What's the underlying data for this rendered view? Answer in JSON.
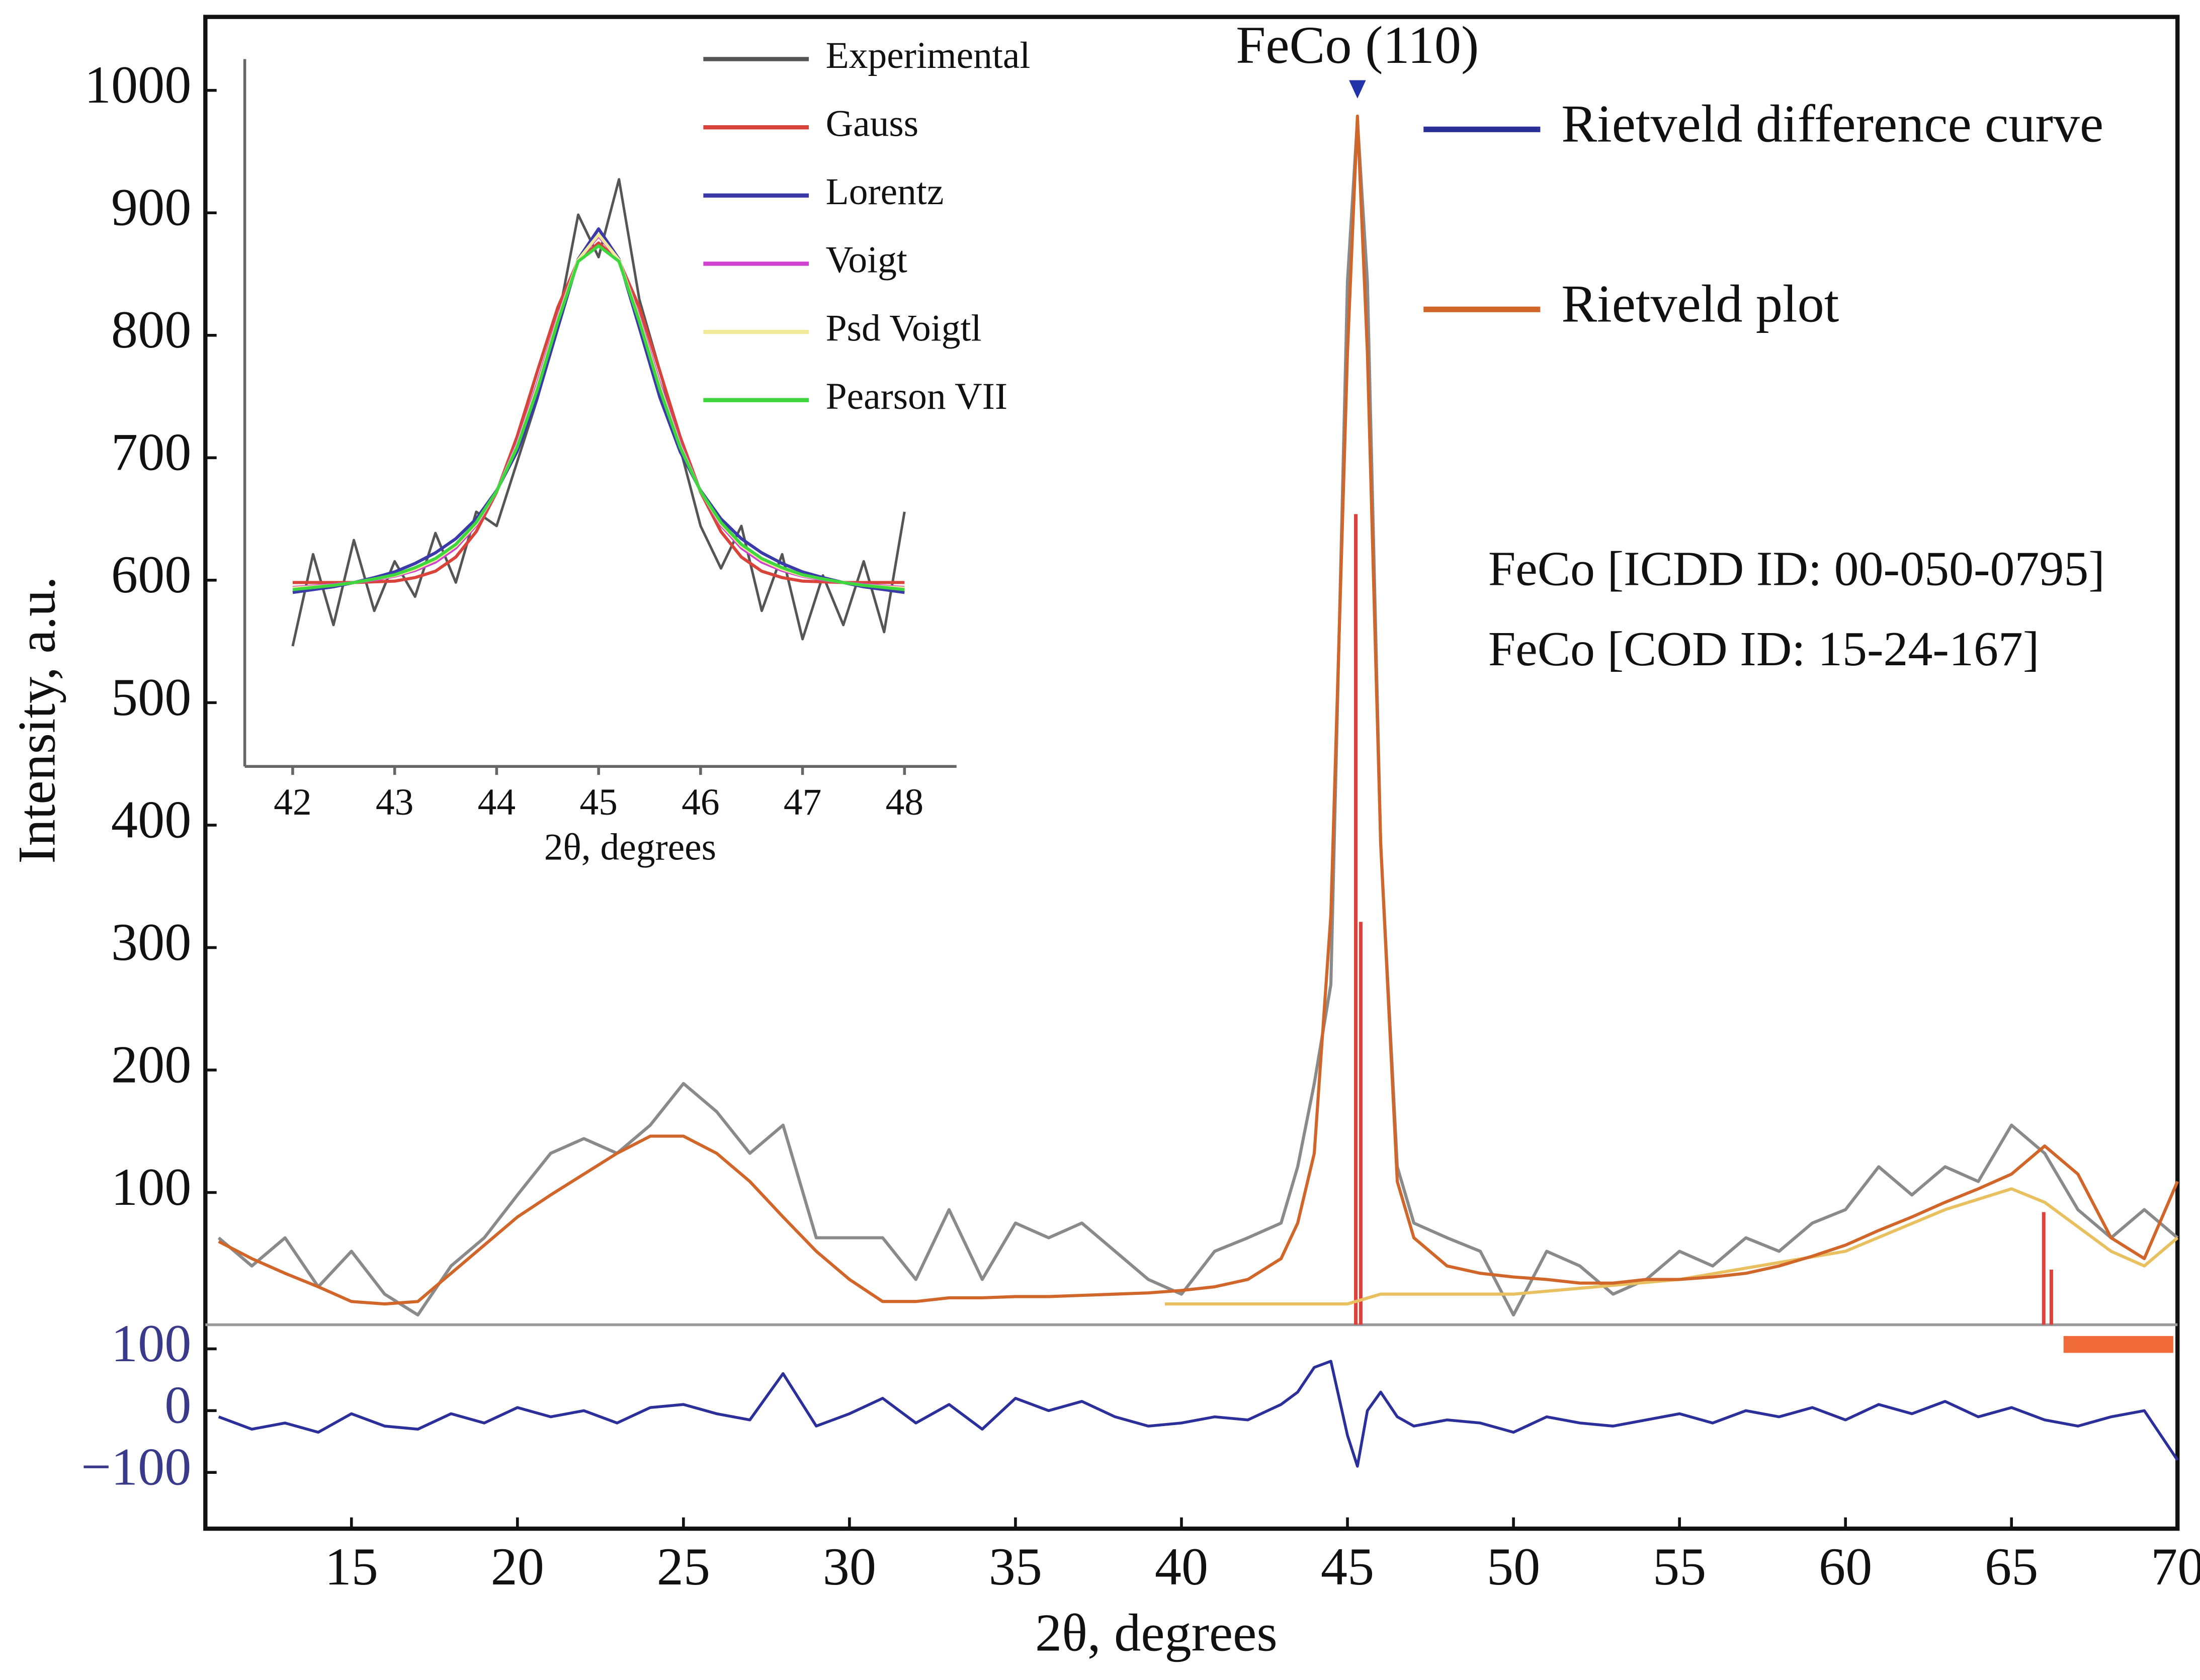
{
  "chart_data": [
    {
      "type": "line",
      "xlabel": "2θ, degrees",
      "ylabel": "Intensity, a.u.",
      "annotations": [
        {
          "text": "FeCo (110)",
          "x": 45.3
        }
      ],
      "notes": [
        "FeCo [ICDD ID: 00-050-0795]",
        "FeCo [COD ID: 15-24-167]"
      ],
      "xlim": [
        10.6,
        70
      ],
      "xticks": [
        15,
        20,
        25,
        30,
        35,
        40,
        45,
        50,
        55,
        60,
        65,
        70
      ],
      "ylim": [
        -8,
        1060
      ],
      "yticks": [
        100,
        200,
        300,
        400,
        500,
        600,
        700,
        800,
        900,
        1000
      ],
      "y2lim": [
        -191,
        139
      ],
      "y2ticks": [
        100,
        0,
        {
          "value": -100,
          "label": "−100"
        }
      ],
      "x": [
        11,
        12,
        13,
        14,
        15,
        16,
        17,
        18,
        19,
        20,
        21,
        22,
        23,
        24,
        25,
        26,
        27,
        28,
        29,
        30,
        31,
        32,
        33,
        34,
        35,
        36,
        37,
        38,
        39,
        40,
        41,
        42,
        43,
        43.5,
        44,
        44.5,
        45,
        45.3,
        45.6,
        46,
        46.5,
        47,
        48,
        49,
        50,
        51,
        52,
        53,
        54,
        55,
        56,
        57,
        58,
        59,
        60,
        61,
        62,
        63,
        64,
        65,
        66,
        67,
        68,
        69,
        70
      ],
      "series": [
        {
          "color": "#8a8a8a",
          "values": [
            63,
            40,
            63,
            23,
            52,
            17,
            0,
            40,
            63,
            98,
            132,
            144,
            132,
            155,
            189,
            166,
            132,
            155,
            63,
            63,
            63,
            29,
            86,
            29,
            75,
            63,
            75,
            52,
            29,
            17,
            52,
            63,
            75,
            121,
            189,
            270,
            844,
            976,
            844,
            385,
            121,
            75,
            63,
            52,
            0,
            52,
            40,
            17,
            29,
            52,
            40,
            63,
            52,
            75,
            86,
            121,
            98,
            121,
            109,
            155,
            132,
            86,
            63,
            86,
            63
          ]
        },
        {
          "name": "Rietveld difference curve",
          "color": "#2b2f9a",
          "axis": "y2",
          "values": [
            -10,
            -30,
            -20,
            -35,
            -5,
            -25,
            -30,
            -5,
            -20,
            5,
            -10,
            0,
            -20,
            5,
            10,
            -5,
            -15,
            60,
            -25,
            -5,
            20,
            -20,
            10,
            -30,
            20,
            0,
            15,
            -10,
            -25,
            -20,
            -10,
            -15,
            10,
            30,
            70,
            80,
            -40,
            -90,
            0,
            30,
            -10,
            -25,
            -15,
            -20,
            -35,
            -10,
            -20,
            -25,
            -15,
            -5,
            -20,
            0,
            -10,
            5,
            -15,
            10,
            -5,
            15,
            -10,
            5,
            -15,
            -25,
            -10,
            0,
            -80
          ]
        },
        {
          "name": "Rietveld plot",
          "color": "#d0662a",
          "values": [
            60,
            46,
            34,
            23,
            11,
            9,
            11,
            34,
            57,
            80,
            98,
            115,
            132,
            146,
            146,
            132,
            109,
            80,
            52,
            29,
            11,
            11,
            14,
            14,
            15,
            15,
            16,
            17,
            18,
            20,
            23,
            29,
            46,
            75,
            132,
            327,
            786,
            979,
            786,
            385,
            109,
            63,
            40,
            34,
            31,
            29,
            26,
            26,
            29,
            29,
            31,
            34,
            40,
            48,
            57,
            69,
            80,
            92,
            103,
            115,
            138,
            115,
            63,
            46,
            109
          ]
        },
        {
          "color": "#e8c060",
          "x": [
            39.5,
            45,
            46,
            50,
            55,
            60,
            63,
            65,
            66,
            68,
            69,
            70
          ],
          "values": [
            9,
            9,
            17,
            17,
            29,
            52,
            86,
            103,
            92,
            52,
            40,
            63
          ]
        }
      ],
      "sticks": {
        "color": "#e0403a",
        "x": [
          45.25,
          45.4,
          65.97,
          66.2
        ],
        "values": [
          654,
          321,
          84,
          37
        ]
      }
    },
    {
      "type": "line",
      "xlabel": "2θ, degrees",
      "xlim": [
        41.53,
        48.51
      ],
      "xticks": [
        42,
        43,
        44,
        45,
        46,
        47,
        48
      ],
      "ylim": [
        0,
        100
      ],
      "x": [
        42,
        42.2,
        42.4,
        42.6,
        42.8,
        43,
        43.2,
        43.4,
        43.6,
        43.8,
        44,
        44.2,
        44.4,
        44.6,
        44.8,
        45,
        45.2,
        45.4,
        45.6,
        45.8,
        46,
        46.2,
        46.4,
        46.6,
        46.8,
        47,
        47.2,
        47.4,
        47.6,
        47.8,
        48
      ],
      "series": [
        {
          "name": "Experimental",
          "color": "#555555",
          "values": [
            17,
            30,
            20,
            32,
            22,
            29,
            24,
            33,
            26,
            36,
            34,
            43,
            52,
            63,
            78,
            72,
            83,
            66,
            56,
            45,
            34,
            28,
            34,
            22,
            30,
            18,
            27,
            20,
            29,
            19,
            36
          ]
        },
        {
          "name": "Gauss",
          "color": "#d9443a",
          "values": [
            26,
            26,
            26,
            26,
            26.1,
            26.2,
            26.7,
            27.6,
            29.6,
            33.2,
            38.8,
            46.6,
            55.9,
            64.9,
            71.5,
            74,
            71.5,
            64.9,
            55.9,
            46.6,
            38.8,
            33.2,
            29.6,
            27.6,
            26.7,
            26.2,
            26.1,
            26,
            26,
            26,
            26
          ]
        },
        {
          "name": "Lorentz",
          "color": "#3a3aa8",
          "values": [
            24.6,
            25,
            25.4,
            26,
            26.7,
            27.5,
            28.7,
            30.2,
            32.2,
            35,
            39,
            44.5,
            52.2,
            62,
            71.7,
            76,
            71.7,
            62,
            52.2,
            44.5,
            39,
            35,
            32.2,
            30.2,
            28.7,
            27.5,
            26.7,
            26,
            25.4,
            25,
            24.6
          ]
        },
        {
          "name": "Voigt",
          "color": "#d040d0",
          "values": [
            25.3,
            25.5,
            25.7,
            26,
            26.4,
            26.9,
            27.7,
            28.9,
            30.9,
            34.1,
            38.9,
            45.6,
            54.1,
            63.5,
            71.6,
            75,
            71.6,
            63.5,
            54.1,
            45.6,
            38.9,
            34.1,
            30.9,
            28.9,
            27.7,
            26.9,
            26.4,
            26,
            25.7,
            25.5,
            25.3
          ]
        },
        {
          "name": "Psd Voigtl",
          "color": "#f0ea9a",
          "values": [
            25.2,
            25.4,
            25.6,
            26,
            26.5,
            27,
            27.9,
            29.2,
            31.2,
            34.3,
            38.9,
            45.3,
            53.7,
            63.2,
            71.6,
            75.2,
            71.6,
            63.2,
            53.7,
            45.3,
            38.9,
            34.3,
            31.2,
            29.2,
            27.9,
            27,
            26.5,
            26,
            25.6,
            25.4,
            25.2
          ]
        },
        {
          "name": "Pearson VII",
          "color": "#3ed83e",
          "values": [
            25,
            25.3,
            25.6,
            26,
            26.5,
            27.1,
            28.1,
            29.4,
            31.4,
            34.5,
            38.9,
            45.1,
            53.3,
            62.9,
            71.4,
            73.6,
            71.4,
            62.9,
            53.3,
            45.1,
            38.9,
            34.5,
            31.4,
            29.4,
            28.1,
            27.1,
            26.5,
            26,
            25.6,
            25.3,
            25
          ]
        }
      ]
    }
  ]
}
